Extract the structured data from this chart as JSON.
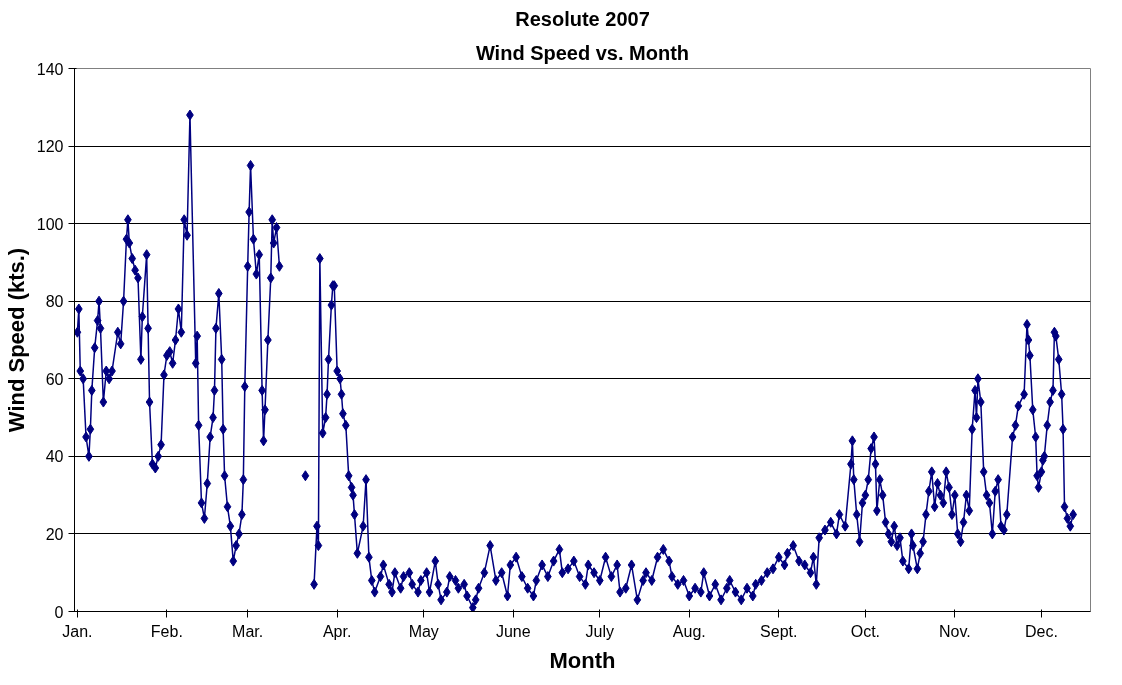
{
  "chart_data": {
    "type": "line",
    "title": "Resolute 2007",
    "subtitle": "Wind Speed vs. Month",
    "xlabel": "Month",
    "ylabel": "Wind Speed (kts.)",
    "xlim": [
      "2006-12-31",
      "2007-12-18"
    ],
    "ylim": [
      0,
      140
    ],
    "xticks": [
      {
        "value": "2007-01-01",
        "label": "Jan."
      },
      {
        "value": "2007-02-01",
        "label": "Feb."
      },
      {
        "value": "2007-03-01",
        "label": "Mar."
      },
      {
        "value": "2007-04-01",
        "label": "Apr."
      },
      {
        "value": "2007-05-01",
        "label": "May"
      },
      {
        "value": "2007-06-01",
        "label": "June"
      },
      {
        "value": "2007-07-01",
        "label": "July"
      },
      {
        "value": "2007-08-01",
        "label": "Aug."
      },
      {
        "value": "2007-09-01",
        "label": "Sept."
      },
      {
        "value": "2007-10-01",
        "label": "Oct."
      },
      {
        "value": "2007-11-01",
        "label": "Nov."
      },
      {
        "value": "2007-12-01",
        "label": "Dec."
      }
    ],
    "yticks": [
      0,
      20,
      40,
      60,
      80,
      100,
      120,
      140
    ],
    "grid": "y",
    "marker": "diamond",
    "line_style": "solid",
    "series": [
      {
        "color": "#000080",
        "x": [
          "2007-01-01",
          "2007-01-01T12:00",
          "2007-01-02",
          "2007-01-03",
          "2007-01-04",
          "2007-01-05",
          "2007-01-05T12:00",
          "2007-01-06",
          "2007-01-07",
          "2007-01-08",
          "2007-01-08T12:00",
          "2007-01-09",
          "2007-01-10",
          "2007-01-11",
          "2007-01-12",
          "2007-01-13",
          "2007-01-15",
          "2007-01-16",
          "2007-01-17",
          "2007-01-18",
          "2007-01-18T12:00",
          "2007-01-19",
          "2007-01-20",
          "2007-01-21",
          "2007-01-22",
          "2007-01-23",
          "2007-01-23T12:00",
          "2007-01-25",
          "2007-01-25T12:00",
          "2007-01-26",
          "2007-01-27",
          "2007-01-28",
          "2007-01-29",
          "2007-01-30",
          "2007-01-31",
          "2007-02-01",
          "2007-02-02",
          "2007-02-03",
          "2007-02-04",
          "2007-02-05",
          "2007-02-06",
          "2007-02-07",
          "2007-02-08",
          "2007-02-09",
          "2007-02-11",
          "2007-02-11T12:00",
          "2007-02-12",
          "2007-02-13",
          "2007-02-14",
          "2007-02-15",
          "2007-02-16",
          "2007-02-17",
          "2007-02-17T12:00",
          "2007-02-18",
          "2007-02-19",
          "2007-02-20",
          "2007-02-20T12:00",
          "2007-02-21",
          "2007-02-22",
          "2007-02-23",
          "2007-02-24",
          "2007-02-25",
          "2007-02-26",
          "2007-02-27",
          "2007-02-27T12:00",
          "2007-02-28",
          "2007-03-01",
          "2007-03-01T12:00",
          "2007-03-02",
          "2007-03-03",
          "2007-03-04",
          "2007-03-05",
          "2007-03-06",
          "2007-03-06T12:00",
          "2007-03-07",
          "2007-03-08",
          "2007-03-09",
          "2007-03-09T12:00",
          "2007-03-10",
          "2007-03-11",
          "2007-03-12",
          "2007-03-16",
          "2007-03-21",
          "2007-03-23",
          "2007-03-24",
          "2007-03-25",
          "2007-03-25T12:00",
          "2007-03-26",
          "2007-03-27",
          "2007-03-28",
          "2007-03-28T12:00",
          "2007-03-29",
          "2007-03-30",
          "2007-03-30T12:00",
          "2007-03-31",
          "2007-04-01",
          "2007-04-02",
          "2007-04-02T12:00",
          "2007-04-03",
          "2007-04-04",
          "2007-04-05",
          "2007-04-06",
          "2007-04-06T12:00",
          "2007-04-07",
          "2007-04-08",
          "2007-04-10",
          "2007-04-11",
          "2007-04-12",
          "2007-04-13",
          "2007-04-14",
          "2007-04-16",
          "2007-04-17",
          "2007-04-19",
          "2007-04-20",
          "2007-04-21",
          "2007-04-23",
          "2007-04-24",
          "2007-04-26",
          "2007-04-27",
          "2007-04-29",
          "2007-04-30",
          "2007-05-02",
          "2007-05-03",
          "2007-05-05",
          "2007-05-06",
          "2007-05-07",
          "2007-05-09",
          "2007-05-10",
          "2007-05-12",
          "2007-05-13",
          "2007-05-15",
          "2007-05-16",
          "2007-05-18",
          "2007-05-19",
          "2007-05-20",
          "2007-05-22",
          "2007-05-24",
          "2007-05-26",
          "2007-05-28",
          "2007-05-30",
          "2007-05-31",
          "2007-06-02",
          "2007-06-04",
          "2007-06-06",
          "2007-06-08",
          "2007-06-09",
          "2007-06-11",
          "2007-06-13",
          "2007-06-15",
          "2007-06-17",
          "2007-06-18",
          "2007-06-20",
          "2007-06-22",
          "2007-06-24",
          "2007-06-26",
          "2007-06-27",
          "2007-06-29",
          "2007-07-01",
          "2007-07-03",
          "2007-07-05",
          "2007-07-07",
          "2007-07-08",
          "2007-07-10",
          "2007-07-12",
          "2007-07-14",
          "2007-07-16",
          "2007-07-17",
          "2007-07-19",
          "2007-07-21",
          "2007-07-23",
          "2007-07-25",
          "2007-07-26",
          "2007-07-28",
          "2007-07-30",
          "2007-08-01",
          "2007-08-03",
          "2007-08-05",
          "2007-08-06",
          "2007-08-08",
          "2007-08-10",
          "2007-08-12",
          "2007-08-14",
          "2007-08-15",
          "2007-08-17",
          "2007-08-19",
          "2007-08-21",
          "2007-08-23",
          "2007-08-24",
          "2007-08-26",
          "2007-08-28",
          "2007-08-30",
          "2007-09-01",
          "2007-09-03",
          "2007-09-04",
          "2007-09-06",
          "2007-09-08",
          "2007-09-10",
          "2007-09-12",
          "2007-09-13",
          "2007-09-14",
          "2007-09-15",
          "2007-09-17",
          "2007-09-19",
          "2007-09-21",
          "2007-09-22",
          "2007-09-24",
          "2007-09-26",
          "2007-09-26T12:00",
          "2007-09-27",
          "2007-09-28",
          "2007-09-29",
          "2007-09-30",
          "2007-10-01",
          "2007-10-02",
          "2007-10-03",
          "2007-10-04",
          "2007-10-04T12:00",
          "2007-10-05",
          "2007-10-06",
          "2007-10-07",
          "2007-10-08",
          "2007-10-09",
          "2007-10-10",
          "2007-10-11",
          "2007-10-12",
          "2007-10-13",
          "2007-10-14",
          "2007-10-16",
          "2007-10-17",
          "2007-10-17T12:00",
          "2007-10-19",
          "2007-10-20",
          "2007-10-21",
          "2007-10-22",
          "2007-10-23",
          "2007-10-24",
          "2007-10-25",
          "2007-10-26",
          "2007-10-27",
          "2007-10-28",
          "2007-10-29",
          "2007-10-30",
          "2007-10-31",
          "2007-11-01",
          "2007-11-02",
          "2007-11-03",
          "2007-11-04",
          "2007-11-05",
          "2007-11-06",
          "2007-11-07",
          "2007-11-08",
          "2007-11-08T12:00",
          "2007-11-09",
          "2007-11-10",
          "2007-11-11",
          "2007-11-12",
          "2007-11-13",
          "2007-11-14",
          "2007-11-15",
          "2007-11-16",
          "2007-11-17",
          "2007-11-18",
          "2007-11-19",
          "2007-11-21",
          "2007-11-22",
          "2007-11-23",
          "2007-11-25",
          "2007-11-26",
          "2007-11-26T12:00",
          "2007-11-27",
          "2007-11-28",
          "2007-11-29",
          "2007-11-29T12:00",
          "2007-11-30",
          "2007-12-01",
          "2007-12-01T12:00",
          "2007-12-02",
          "2007-12-03",
          "2007-12-04",
          "2007-12-05",
          "2007-12-05T12:00",
          "2007-12-06",
          "2007-12-07",
          "2007-12-08",
          "2007-12-08T12:00",
          "2007-12-09",
          "2007-12-10",
          "2007-12-11",
          "2007-12-12"
        ],
        "values": [
          72,
          78,
          62,
          60,
          45,
          40,
          47,
          57,
          68,
          75,
          80,
          73,
          54,
          62,
          60,
          62,
          72,
          69,
          80,
          96,
          101,
          95,
          91,
          88,
          86,
          65,
          76,
          92,
          73,
          54,
          38,
          37,
          40,
          43,
          61,
          66,
          67,
          64,
          70,
          78,
          72,
          101,
          97,
          128,
          64,
          71,
          48,
          28,
          24,
          33,
          45,
          50,
          57,
          73,
          82,
          65,
          47,
          35,
          27,
          22,
          13,
          17,
          20,
          25,
          34,
          58,
          89,
          103,
          115,
          96,
          87,
          92,
          57,
          44,
          52,
          70,
          86,
          101,
          95,
          99,
          89,
          null,
          35,
          null,
          7,
          22,
          17,
          91,
          46,
          50,
          56,
          65,
          79,
          84,
          84,
          62,
          60,
          56,
          51,
          48,
          35,
          32,
          30,
          25,
          15,
          22,
          34,
          14,
          8,
          5,
          9,
          12,
          7,
          5,
          10,
          6,
          9,
          10,
          7,
          5,
          8,
          10,
          5,
          13,
          7,
          3,
          5,
          9,
          8,
          6,
          7,
          4,
          1,
          3,
          6,
          10,
          17,
          8,
          10,
          4,
          12,
          14,
          9,
          6,
          4,
          8,
          12,
          9,
          13,
          16,
          10,
          11,
          13,
          9,
          7,
          12,
          10,
          8,
          14,
          9,
          12,
          5,
          6,
          12,
          3,
          8,
          10,
          8,
          14,
          16,
          13,
          9,
          7,
          8,
          4,
          6,
          5,
          10,
          4,
          7,
          3,
          6,
          8,
          5,
          3,
          6,
          4,
          7,
          8,
          10,
          11,
          14,
          12,
          15,
          17,
          13,
          12,
          10,
          14,
          7,
          19,
          21,
          23,
          20,
          25,
          22,
          38,
          44,
          34,
          25,
          18,
          28,
          30,
          34,
          42,
          45,
          38,
          26,
          34,
          30,
          23,
          20,
          18,
          22,
          17,
          19,
          13,
          11,
          20,
          17,
          11,
          15,
          18,
          25,
          31,
          36,
          27,
          33,
          30,
          28,
          36,
          32,
          25,
          30,
          20,
          18,
          23,
          30,
          26,
          47,
          57,
          50,
          60,
          54,
          36,
          30,
          28,
          20,
          31,
          34,
          22,
          21,
          25,
          45,
          48,
          53,
          56,
          74,
          70,
          66,
          52,
          45,
          35,
          32,
          36,
          39,
          40,
          48,
          54,
          57,
          72,
          71,
          65,
          56,
          47,
          27,
          24,
          22,
          25
        ]
      }
    ]
  }
}
